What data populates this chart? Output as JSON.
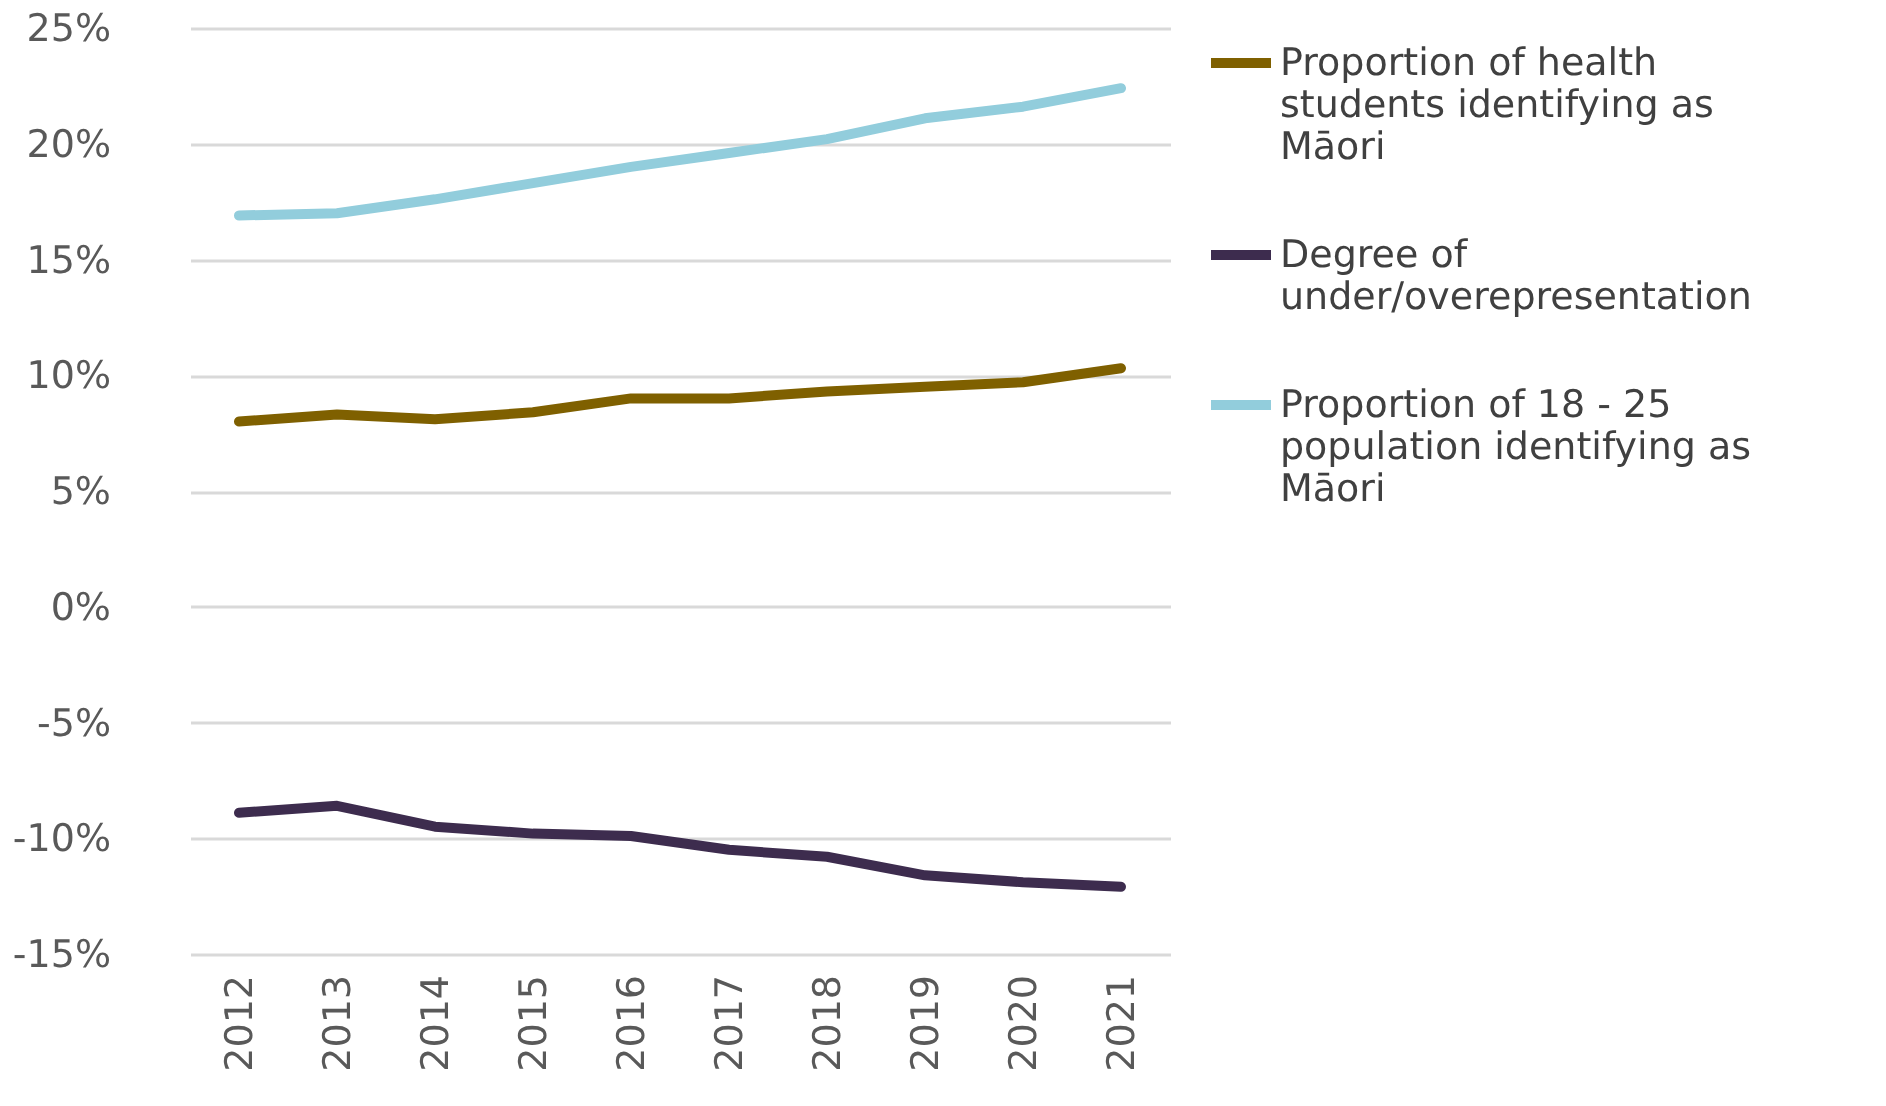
{
  "chart_data": {
    "type": "line",
    "categories": [
      "2012",
      "2013",
      "2014",
      "2015",
      "2016",
      "2017",
      "2018",
      "2019",
      "2020",
      "2021"
    ],
    "series": [
      {
        "name": "Proportion of health students identifying as Māori",
        "color": "#7f6000",
        "values": [
          8.0,
          8.3,
          8.1,
          8.4,
          9.0,
          9.0,
          9.3,
          9.5,
          9.7,
          10.3
        ]
      },
      {
        "name": "Degree of under/overepresentation",
        "color": "#3d2c4e",
        "values": [
          -8.9,
          -8.6,
          -9.5,
          -9.8,
          -9.9,
          -10.5,
          -10.8,
          -11.6,
          -11.9,
          -12.1
        ]
      },
      {
        "name": "Proportion of 18 - 25 population identifying as Māori",
        "color": "#92cddc",
        "values": [
          16.9,
          17.0,
          17.6,
          18.3,
          19.0,
          19.6,
          20.2,
          21.1,
          21.6,
          22.4
        ]
      }
    ],
    "ylim": [
      -15,
      25
    ],
    "yticks": [
      {
        "value": -15,
        "label": "-15%"
      },
      {
        "value": -10,
        "label": "-10%"
      },
      {
        "value": -5,
        "label": "-5%"
      },
      {
        "value": 0,
        "label": "0%"
      },
      {
        "value": 5,
        "label": "5%"
      },
      {
        "value": 10,
        "label": "10%"
      },
      {
        "value": 15,
        "label": "15%"
      },
      {
        "value": 20,
        "label": "20%"
      },
      {
        "value": 25,
        "label": "25%"
      }
    ],
    "grid": "y",
    "legend": "right",
    "marker": "none",
    "line_style": "solid"
  }
}
